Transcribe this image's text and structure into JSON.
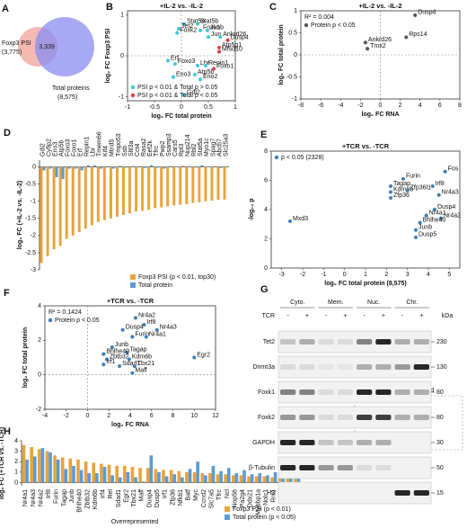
{
  "chart_data": [
    {
      "type": "venn",
      "panel": "A",
      "sets": [
        {
          "name": "Foxp3 PSI",
          "count": "(3,775)",
          "color": "#f0a8a0"
        },
        {
          "name": "Total proteins",
          "count": "(8,575)",
          "color": "#8a8cf0"
        }
      ],
      "overlap": "3,339"
    },
    {
      "type": "scatter",
      "panel": "B",
      "title": "+IL-2 vs. -IL-2",
      "xlabel": "log₂ FC total protein",
      "ylabel": "log₂ FC Foxp3 PSI",
      "xlim": [
        -1,
        1
      ],
      "ylim": [
        -1.1,
        1.1
      ],
      "xticks": [
        -1,
        -0.5,
        0,
        0.5,
        1
      ],
      "yticks": [
        -1,
        0,
        1
      ],
      "zero_lines": true,
      "legend": "lower left",
      "series": [
        {
          "name": "PSI p < 0.01 & Total p > 0.05",
          "color": "#3fc8d8",
          "labels": [
            "Stat5a",
            "Stat5b",
            "Tet2",
            "Foxk2",
            "Foxk1",
            "Junb",
            "Jun",
            "Ankrd26",
            "Erf",
            "Foxo3",
            "Lbr",
            "Repin1",
            "Eno3",
            "Atp5b",
            "Eno2",
            "Gdi2"
          ],
          "x": [
            0.05,
            0.3,
            -0.05,
            -0.08,
            0.35,
            0.48,
            0.5,
            0.72,
            -0.25,
            -0.12,
            0.3,
            0.45,
            -0.15,
            0.25,
            0.35,
            0.05
          ],
          "values": [
            0.78,
            0.78,
            0.66,
            0.56,
            0.62,
            0.62,
            0.46,
            0.46,
            -0.12,
            -0.2,
            -0.24,
            -0.24,
            -0.52,
            -0.46,
            -0.58,
            -0.96
          ]
        },
        {
          "name": "PSI p < 0.01 & Total p < 0.05",
          "color": "#e03a3a",
          "labels": [
            "Dusp4",
            "Atp5g1",
            "Mfsd10",
            "Foxo1"
          ],
          "x": [
            0.86,
            0.7,
            0.7,
            0.6
          ],
          "values": [
            0.38,
            0.2,
            0.1,
            -0.32
          ]
        }
      ]
    },
    {
      "type": "scatter",
      "panel": "C",
      "title": "+IL-2 vs. -IL-2",
      "xlabel": "log₂ FC RNA",
      "ylabel": "log₂ FC total protein",
      "xlim": [
        -8,
        8
      ],
      "ylim": [
        -1,
        1
      ],
      "xticks": [
        -8,
        -6,
        -4,
        -2,
        0,
        2,
        4,
        6,
        8
      ],
      "yticks": [
        -1,
        -0.5,
        0,
        0.5,
        1
      ],
      "zero_lines": true,
      "legend": "upper left",
      "annotation": "R² = 0.004",
      "series": [
        {
          "name": "Protein p < 0.05",
          "color": "#555555",
          "labels": [
            "Dusp4",
            "Rps14",
            "Ankrd26",
            "Tmx2"
          ],
          "x": [
            3.5,
            2.6,
            -1.5,
            -1.3
          ],
          "values": [
            0.9,
            0.4,
            0.28,
            0.14
          ]
        }
      ]
    },
    {
      "type": "bar",
      "panel": "D",
      "ylabel": "log₂ FC (+IL-2 vs. -IL-2)",
      "ylim": [
        -3,
        0.2
      ],
      "yticks": [
        0,
        -0.5,
        -1,
        -1.5,
        -2,
        -2.5,
        -3
      ],
      "legend": "lower right",
      "categories": [
        "Gdi2",
        "Cyfip2",
        "Eno3",
        "Atp5b",
        "Foxo3",
        "Foxo1",
        "Erf",
        "Repin1",
        "Lbr",
        "Tmem66",
        "Kif4",
        "Mtnd5",
        "Tmpo53",
        "Ssb",
        "Sltl3a",
        "Cct4",
        "Rasa2",
        "Eef2k",
        "Tfrc",
        "Pwp2",
        "Ssamp3",
        "Cars5",
        "Rpl3",
        "Nup214",
        "Rbl2",
        "Stat5a",
        "Myo1c",
        "Spag7",
        "Abcb7",
        "Slc25a3"
      ],
      "series": [
        {
          "name": "Foxp3 PSI (p < 0.01, top30)",
          "color": "#e8a33d",
          "values": [
            -2.8,
            -2.6,
            -2.4,
            -2.3,
            -2.1,
            -2.0,
            -1.9,
            -1.8,
            -1.7,
            -1.6,
            -1.55,
            -1.5,
            -1.45,
            -1.4,
            -1.35,
            -1.3,
            -1.28,
            -1.25,
            -1.2,
            -1.18,
            -1.15,
            -1.12,
            -1.1,
            -1.08,
            -1.05,
            -1.03,
            -1.0,
            -0.98,
            -0.96,
            -0.95
          ]
        },
        {
          "name": "Total protein",
          "color": "#5b9bd5",
          "values": [
            -0.1,
            -0.05,
            -0.3,
            -0.35,
            -0.05,
            -0.05,
            -0.1,
            0.05,
            0.05,
            -0.05,
            0.02,
            -0.05,
            0.03,
            -0.02,
            0.01,
            0.02,
            -0.03,
            0.05,
            -0.02,
            -0.05,
            0.02,
            -0.01,
            0.03,
            0.01,
            -0.02,
            0.05,
            -0.01,
            0.02,
            -0.03,
            0.01
          ]
        }
      ]
    },
    {
      "type": "scatter",
      "panel": "E",
      "title": "+TCR vs. -TCR",
      "xlabel": "log₂ FC total protein (8,575)",
      "ylabel": "-log₁₀ p",
      "xlim": [
        -3.5,
        5.5
      ],
      "ylim": [
        0,
        8
      ],
      "xticks": [
        -3,
        -2,
        -1,
        0,
        1,
        2,
        3,
        4,
        5
      ],
      "yticks": [
        0,
        2,
        4,
        6,
        8
      ],
      "zero_lines": false,
      "legend": "upper left",
      "series": [
        {
          "name": "p < 0.05 (2328)",
          "color": "#3f7fb8",
          "labels": [
            "Fos",
            "Irf8",
            "Nr4a3",
            "Furin",
            "Tagap",
            "Kdm6b",
            "Zfp36",
            "Zfp36l1",
            "Dusp4",
            "Nr4a1",
            "Nr4a2",
            "Bhlhe40",
            "Junb",
            "Dusp5",
            "Mxd3"
          ],
          "x": [
            4.8,
            4.2,
            4.5,
            2.8,
            2.2,
            2.2,
            2.2,
            3.0,
            4.3,
            3.9,
            4.6,
            3.6,
            3.4,
            3.4,
            -2.6
          ],
          "values": [
            6.6,
            5.6,
            5.0,
            6.1,
            5.6,
            5.2,
            4.8,
            5.3,
            4.0,
            3.6,
            3.4,
            3.1,
            2.6,
            2.1,
            3.2
          ]
        }
      ]
    },
    {
      "type": "scatter",
      "panel": "F",
      "title": "+TCR vs. -TCR",
      "xlabel": "log₂ FC RNA",
      "ylabel": "log₂ FC total protein",
      "xlim": [
        -4,
        12
      ],
      "ylim": [
        -2,
        4
      ],
      "xticks": [
        -4,
        -2,
        0,
        2,
        4,
        6,
        8,
        10,
        12
      ],
      "yticks": [
        -2,
        0,
        2,
        4
      ],
      "zero_lines": true,
      "legend": "upper left",
      "annotation": "R² = 0.1424",
      "series": [
        {
          "name": "Protein p < 0.05",
          "color": "#3f7fb8",
          "labels": [
            "Nr4a2",
            "Irf8",
            "Nr4a3",
            "Dusp4",
            "Furin",
            "Nr4a1",
            "Junb",
            "Tagap",
            "Bhlhe40",
            "Zbtb32",
            "Kdm6b",
            "Irf1",
            "Sdad1",
            "Tbx21",
            "Maff",
            "Egr2"
          ],
          "x": [
            4.5,
            5.3,
            6.5,
            3.3,
            4.2,
            5.5,
            2.3,
            3.7,
            1.5,
            1.8,
            3.9,
            1.5,
            3.0,
            4.4,
            4.2,
            10.0
          ],
          "values": [
            3.3,
            2.9,
            2.6,
            2.6,
            2.2,
            2.2,
            1.6,
            1.3,
            1.2,
            0.9,
            0.9,
            0.6,
            0.5,
            0.5,
            0.1,
            1.0
          ]
        }
      ]
    },
    {
      "type": "bar",
      "panel": "H",
      "ylabel": "log₂ FC (+TCR vs. -TCR)",
      "ylim": [
        -0.3,
        4
      ],
      "yticks": [
        0,
        1,
        2,
        3,
        4
      ],
      "legend": "below",
      "note_over": "Overrepresented",
      "note_under": "Underrepresented",
      "categories": [
        "Nr4a1",
        "Nr4a3",
        "Nr4a2",
        "Irf8",
        "Furin",
        "Tagap",
        "Junb",
        "Bhlhe40",
        "Zbtb32",
        "Kdm6b",
        "Irf4",
        "Rel",
        "Sdad1",
        "Egr2",
        "Tbx21",
        "Maff",
        "Dusp4",
        "Dusp5",
        "Irf1",
        "Zfp36",
        "Nfkb1",
        "Batf",
        "Myc",
        "Ccnd2",
        "Slc7a5",
        "Tfrc",
        "Ncl",
        "Nop56",
        "Pa2g4",
        "Ddx21",
        "Mybbp1a",
        "Nolc1",
        "Rrs1",
        "Srm",
        "Ppat",
        "Gart"
      ],
      "series": [
        {
          "name": "Foxp3 PSI (p < 0.01)",
          "color": "#e8a33d",
          "values": [
            3.6,
            3.4,
            3.2,
            3.0,
            2.6,
            2.4,
            2.3,
            2.2,
            2.0,
            1.9,
            1.8,
            1.7,
            1.6,
            1.6,
            1.5,
            1.4,
            1.4,
            1.3,
            1.2,
            1.2,
            1.1,
            1.0,
            1.0,
            0.9,
            0.9,
            0.8,
            0.8,
            0.7,
            0.7,
            0.6,
            0.6,
            0.6,
            0.5,
            0.5,
            0.4,
            0.4
          ]
        },
        {
          "name": "Total protein (p < 0.05)",
          "color": "#5b9bd5",
          "values": [
            2.2,
            2.5,
            3.3,
            2.9,
            2.2,
            1.3,
            1.6,
            1.2,
            0.9,
            0.9,
            1.5,
            0.7,
            0.5,
            1.0,
            0.5,
            0.1,
            2.6,
            1.0,
            0.6,
            0.8,
            0.5,
            1.3,
            2.0,
            0.7,
            1.6,
            1.1,
            1.4,
            0.9,
            1.2,
            0.8,
            0.9,
            0.7,
            1.0,
            0.8,
            0.6,
            0.5
          ]
        }
      ]
    }
  ],
  "blot": {
    "panel": "G",
    "treatment": "TCR",
    "signs": [
      "-",
      "+"
    ],
    "fractions": [
      "Cyto.",
      "Mem.",
      "Nuc.",
      "Chr."
    ],
    "unit": "kDa",
    "rows": [
      {
        "name": "Tet2",
        "marker": "230"
      },
      {
        "name": "Dnmt3a",
        "marker": "130"
      },
      {
        "name": "Foxk1",
        "marker": "80"
      },
      {
        "name": "Foxk2",
        "marker": "80"
      },
      {
        "name": "GAPDH",
        "marker": "30"
      },
      {
        "name": "β-Tubulin",
        "marker": "50"
      },
      {
        "name": "H3",
        "marker": "15"
      }
    ]
  }
}
